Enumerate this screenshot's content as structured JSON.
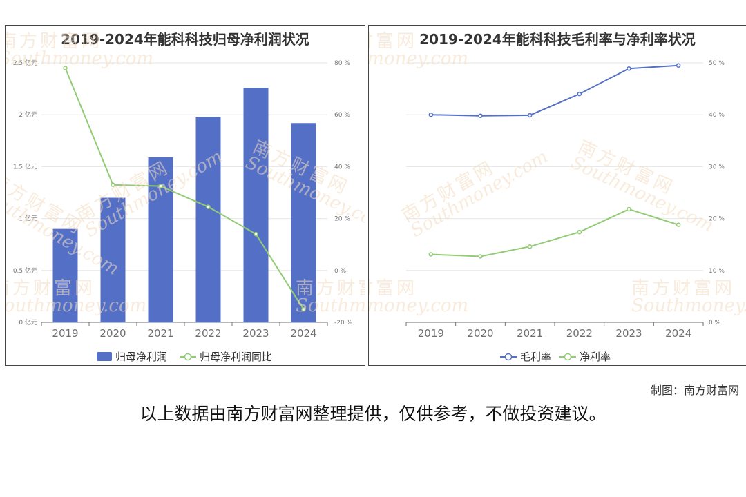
{
  "charts": {
    "left": {
      "title": "2019-2024年能科科技归母净利润状况",
      "legend": [
        "归母净利润",
        "归母净利润同比"
      ]
    },
    "right": {
      "title": "2019-2024年能科科技毛利率与净利率状况",
      "legend": [
        "毛利率",
        "净利率"
      ]
    }
  },
  "watermark": {
    "cn": "南方财富网",
    "en": "Southmoney.com"
  },
  "footer": {
    "credit": "制图：南方财富网",
    "disclaimer": "以上数据由南方财富网整理提供，仅供参考，不做投资建议。"
  },
  "colors": {
    "bar": "#5470c6",
    "green": "#91cc75",
    "blue": "#5470c6",
    "watermark": "#f5dcc0"
  },
  "chart_data": [
    {
      "type": "bar",
      "title": "2019-2024年能科科技归母净利润状况",
      "categories": [
        "2019",
        "2020",
        "2021",
        "2022",
        "2023",
        "2024"
      ],
      "series": [
        {
          "name": "归母净利润",
          "type": "bar",
          "axis": "left",
          "values": [
            0.9,
            1.2,
            1.59,
            1.98,
            2.26,
            1.92
          ]
        },
        {
          "name": "归母净利润同比",
          "type": "line",
          "axis": "right",
          "values": [
            78,
            33,
            32.5,
            24.5,
            14,
            -15
          ]
        }
      ],
      "y_left": {
        "min": 0,
        "max": 2.5,
        "ticks": [
          0,
          0.5,
          1,
          1.5,
          2,
          2.5
        ],
        "tick_labels": [
          "0 亿元",
          "0.5 亿元",
          "1 亿元",
          "1.5 亿元",
          "2 亿元",
          "2.5 亿元"
        ]
      },
      "y_right": {
        "min": -20,
        "max": 80,
        "ticks": [
          -20,
          0,
          20,
          40,
          60,
          80
        ],
        "tick_labels": [
          "-20 %",
          "0 %",
          "20 %",
          "40 %",
          "60 %",
          "80 %"
        ]
      },
      "grid": true,
      "legend_position": "bottom"
    },
    {
      "type": "line",
      "title": "2019-2024年能科科技毛利率与净利率状况",
      "categories": [
        "2019",
        "2020",
        "2021",
        "2022",
        "2023",
        "2024"
      ],
      "series": [
        {
          "name": "毛利率",
          "values": [
            40,
            39.8,
            39.9,
            44,
            48.9,
            49.5
          ]
        },
        {
          "name": "净利率",
          "values": [
            13.1,
            12.7,
            14.6,
            17.4,
            21.8,
            18.8
          ]
        }
      ],
      "y_right": {
        "min": 0,
        "max": 50,
        "ticks": [
          0,
          10,
          20,
          30,
          40,
          50
        ],
        "tick_labels": [
          "0 %",
          "10 %",
          "20 %",
          "30 %",
          "40 %",
          "50 %"
        ]
      },
      "grid": true,
      "legend_position": "bottom"
    }
  ]
}
